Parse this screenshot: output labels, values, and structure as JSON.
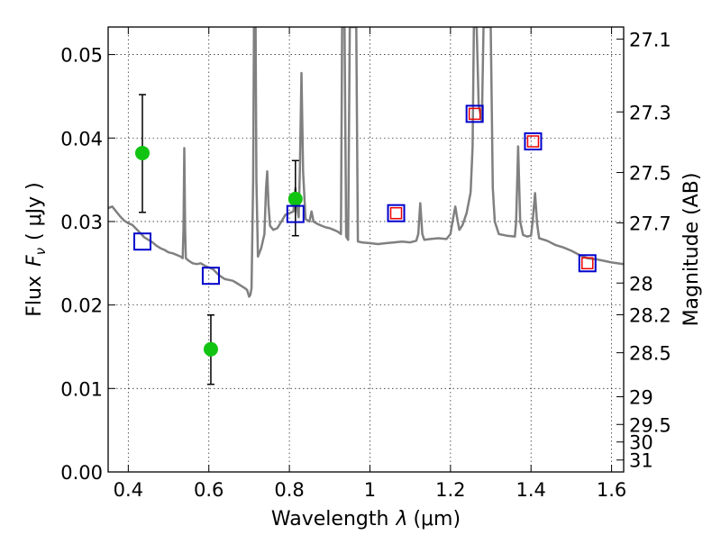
{
  "chart_data": {
    "type": "scatter",
    "xlabel": "Wavelength",
    "xlabel_symbol": "λ",
    "xlabel_unit": "(μm)",
    "ylabel": "Flux",
    "ylabel_symbol": "F",
    "ylabel_subscript": "ν",
    "ylabel_unit": "( μJy )",
    "y2label": "Magnitude (AB)",
    "xlim": [
      0.35,
      1.63
    ],
    "ylim": [
      0.0,
      0.0533
    ],
    "grid": true,
    "xticks": [
      0.4,
      0.6,
      0.8,
      1.0,
      1.2,
      1.4,
      1.6
    ],
    "xtick_labels": [
      "0.4",
      "0.6",
      "0.8",
      "1",
      "1.2",
      "1.4",
      "1.6"
    ],
    "yticks": [
      0.0,
      0.01,
      0.02,
      0.03,
      0.04,
      0.05
    ],
    "ytick_labels": [
      "0.00",
      "0.01",
      "0.02",
      "0.03",
      "0.04",
      "0.05"
    ],
    "y2ticks": [
      {
        "label": "27.1",
        "flux": 0.05186
      },
      {
        "label": "27.3",
        "flux": 0.04313
      },
      {
        "label": "27.5",
        "flux": 0.03587
      },
      {
        "label": "27.7",
        "flux": 0.02984
      },
      {
        "label": "28",
        "flux": 0.02263
      },
      {
        "label": "28.2",
        "flux": 0.01883
      },
      {
        "label": "28.5",
        "flux": 0.01428
      },
      {
        "label": "29",
        "flux": 0.00901
      },
      {
        "label": "29.5",
        "flux": 0.00569
      },
      {
        "label": "30",
        "flux": 0.00359
      },
      {
        "label": "31",
        "flux": 0.00143
      }
    ],
    "series": [
      {
        "kind": "line",
        "color": "#808080",
        "points": [
          [
            0.35,
            0.0316
          ],
          [
            0.36,
            0.0318
          ],
          [
            0.37,
            0.0312
          ],
          [
            0.38,
            0.0306
          ],
          [
            0.39,
            0.0301
          ],
          [
            0.4,
            0.0298
          ],
          [
            0.41,
            0.0296
          ],
          [
            0.42,
            0.0291
          ],
          [
            0.43,
            0.0286
          ],
          [
            0.44,
            0.0281
          ],
          [
            0.45,
            0.0278
          ],
          [
            0.46,
            0.0275
          ],
          [
            0.47,
            0.0271
          ],
          [
            0.48,
            0.0268
          ],
          [
            0.49,
            0.0266
          ],
          [
            0.5,
            0.0263
          ],
          [
            0.51,
            0.0262
          ],
          [
            0.52,
            0.026
          ],
          [
            0.53,
            0.0258
          ],
          [
            0.535,
            0.0256
          ],
          [
            0.537,
            0.029
          ],
          [
            0.539,
            0.0388
          ],
          [
            0.541,
            0.029
          ],
          [
            0.543,
            0.0256
          ],
          [
            0.55,
            0.0253
          ],
          [
            0.56,
            0.025
          ],
          [
            0.57,
            0.0249
          ],
          [
            0.58,
            0.025
          ],
          [
            0.59,
            0.0247
          ],
          [
            0.6,
            0.0245
          ],
          [
            0.61,
            0.0243
          ],
          [
            0.62,
            0.0238
          ],
          [
            0.63,
            0.0234
          ],
          [
            0.64,
            0.0231
          ],
          [
            0.65,
            0.023
          ],
          [
            0.66,
            0.0229
          ],
          [
            0.67,
            0.0226
          ],
          [
            0.68,
            0.0223
          ],
          [
            0.69,
            0.022
          ],
          [
            0.695,
            0.0218
          ],
          [
            0.7,
            0.021
          ],
          [
            0.703,
            0.0212
          ],
          [
            0.706,
            0.022
          ],
          [
            0.71,
            0.035
          ],
          [
            0.712,
            0.0533
          ],
          [
            0.716,
            0.0533
          ],
          [
            0.718,
            0.035
          ],
          [
            0.722,
            0.0258
          ],
          [
            0.73,
            0.0268
          ],
          [
            0.738,
            0.0285
          ],
          [
            0.742,
            0.034
          ],
          [
            0.745,
            0.036
          ],
          [
            0.748,
            0.032
          ],
          [
            0.752,
            0.0295
          ],
          [
            0.76,
            0.029
          ],
          [
            0.77,
            0.0292
          ],
          [
            0.78,
            0.03
          ],
          [
            0.79,
            0.0308
          ],
          [
            0.8,
            0.031
          ],
          [
            0.81,
            0.0312
          ],
          [
            0.815,
            0.034
          ],
          [
            0.818,
            0.032
          ],
          [
            0.823,
            0.0305
          ],
          [
            0.826,
            0.036
          ],
          [
            0.83,
            0.0478
          ],
          [
            0.834,
            0.036
          ],
          [
            0.84,
            0.0303
          ],
          [
            0.85,
            0.03
          ],
          [
            0.855,
            0.0312
          ],
          [
            0.86,
            0.03
          ],
          [
            0.87,
            0.0297
          ],
          [
            0.88,
            0.0295
          ],
          [
            0.89,
            0.0293
          ],
          [
            0.9,
            0.0292
          ],
          [
            0.91,
            0.029
          ],
          [
            0.92,
            0.0288
          ],
          [
            0.928,
            0.0285
          ],
          [
            0.931,
            0.0533
          ],
          [
            0.937,
            0.0533
          ],
          [
            0.941,
            0.0282
          ],
          [
            0.946,
            0.0278
          ],
          [
            0.95,
            0.0533
          ],
          [
            0.955,
            0.0533
          ],
          [
            0.96,
            0.0533
          ],
          [
            0.966,
            0.0533
          ],
          [
            0.97,
            0.0276
          ],
          [
            0.98,
            0.0275
          ],
          [
            1.0,
            0.0274
          ],
          [
            1.02,
            0.0273
          ],
          [
            1.04,
            0.0274
          ],
          [
            1.06,
            0.0275
          ],
          [
            1.08,
            0.0276
          ],
          [
            1.1,
            0.0275
          ],
          [
            1.115,
            0.0277
          ],
          [
            1.12,
            0.0285
          ],
          [
            1.125,
            0.0322
          ],
          [
            1.13,
            0.0285
          ],
          [
            1.135,
            0.0278
          ],
          [
            1.15,
            0.0279
          ],
          [
            1.17,
            0.028
          ],
          [
            1.19,
            0.0279
          ],
          [
            1.2,
            0.0285
          ],
          [
            1.205,
            0.03
          ],
          [
            1.212,
            0.0318
          ],
          [
            1.218,
            0.03
          ],
          [
            1.222,
            0.029
          ],
          [
            1.23,
            0.0296
          ],
          [
            1.24,
            0.031
          ],
          [
            1.25,
            0.0335
          ],
          [
            1.255,
            0.039
          ],
          [
            1.258,
            0.0533
          ],
          [
            1.265,
            0.0533
          ],
          [
            1.27,
            0.044
          ],
          [
            1.278,
            0.042
          ],
          [
            1.282,
            0.0533
          ],
          [
            1.3,
            0.0533
          ],
          [
            1.305,
            0.034
          ],
          [
            1.31,
            0.03
          ],
          [
            1.32,
            0.0285
          ],
          [
            1.34,
            0.0283
          ],
          [
            1.36,
            0.0282
          ],
          [
            1.363,
            0.03
          ],
          [
            1.368,
            0.039
          ],
          [
            1.373,
            0.03
          ],
          [
            1.38,
            0.0284
          ],
          [
            1.39,
            0.0282
          ],
          [
            1.4,
            0.0283
          ],
          [
            1.404,
            0.03
          ],
          [
            1.41,
            0.0334
          ],
          [
            1.415,
            0.0298
          ],
          [
            1.42,
            0.028
          ],
          [
            1.44,
            0.0277
          ],
          [
            1.46,
            0.0272
          ],
          [
            1.48,
            0.0269
          ],
          [
            1.5,
            0.0265
          ],
          [
            1.52,
            0.026
          ],
          [
            1.54,
            0.0256
          ],
          [
            1.56,
            0.0255
          ],
          [
            1.58,
            0.0253
          ],
          [
            1.6,
            0.0251
          ],
          [
            1.63,
            0.0249
          ]
        ]
      },
      {
        "kind": "points",
        "marker": "circle",
        "color": "#11c411",
        "errorbar_color": "#000000",
        "points": [
          {
            "x": 0.435,
            "y": 0.0382,
            "ylo": 0.0311,
            "yhi": 0.0452
          },
          {
            "x": 0.605,
            "y": 0.0147,
            "ylo": 0.0105,
            "yhi": 0.0188
          },
          {
            "x": 0.815,
            "y": 0.0327,
            "ylo": 0.0283,
            "yhi": 0.0373
          }
        ]
      },
      {
        "kind": "points",
        "marker": "square-large",
        "color": "#0000cc",
        "points": [
          {
            "x": 0.435,
            "y": 0.0276
          },
          {
            "x": 0.605,
            "y": 0.0235
          },
          {
            "x": 0.815,
            "y": 0.0309
          },
          {
            "x": 1.065,
            "y": 0.031
          },
          {
            "x": 1.26,
            "y": 0.0429
          },
          {
            "x": 1.405,
            "y": 0.0396
          },
          {
            "x": 1.54,
            "y": 0.025
          }
        ]
      },
      {
        "kind": "points",
        "marker": "square-small",
        "color": "#ee0000",
        "points": [
          {
            "x": 1.065,
            "y": 0.031
          },
          {
            "x": 1.26,
            "y": 0.0429
          },
          {
            "x": 1.405,
            "y": 0.0396
          },
          {
            "x": 1.54,
            "y": 0.025
          }
        ]
      }
    ]
  }
}
